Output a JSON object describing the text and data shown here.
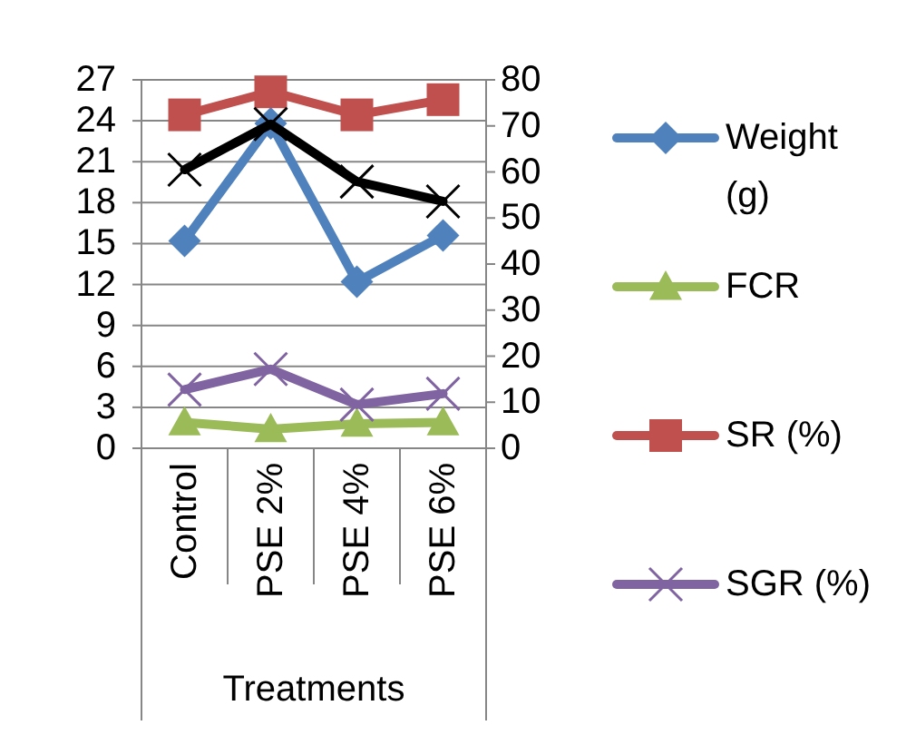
{
  "chart_data": {
    "type": "line",
    "xlabel": "Treatments",
    "categories": [
      "Control",
      "PSE 2%",
      "PSE 4%",
      "PSE 6%"
    ],
    "series": [
      {
        "name": "Weight (g)",
        "color": "#4f81bd",
        "marker": "diamond",
        "values": [
          15.2,
          23.8,
          12.2,
          15.6
        ]
      },
      {
        "name": "FCR",
        "color": "#9bbb59",
        "marker": "triangle",
        "values": [
          1.9,
          1.4,
          1.8,
          1.9
        ]
      },
      {
        "name": "SR (%)",
        "color": "#c0504d",
        "marker": "square",
        "axis": "y2",
        "values": [
          72.4,
          77.4,
          72.4,
          75.7
        ]
      },
      {
        "name": "SGR (%)",
        "color": "#8064a2",
        "marker": "cross",
        "values": [
          4.3,
          5.8,
          3.2,
          4.0
        ]
      },
      {
        "color": "#000000",
        "marker": "cross",
        "axis": "y2",
        "values": [
          60.5,
          70.4,
          57.9,
          53.6
        ]
      }
    ],
    "ylim": [
      0,
      27
    ],
    "yticks": [
      0,
      3,
      6,
      9,
      12,
      15,
      18,
      21,
      24,
      27
    ],
    "y2lim": [
      0,
      80
    ],
    "y2ticks": [
      0,
      10,
      20,
      30,
      40,
      50,
      60,
      70,
      80
    ],
    "grid": "y",
    "legend": "right",
    "line_style": "solid"
  }
}
